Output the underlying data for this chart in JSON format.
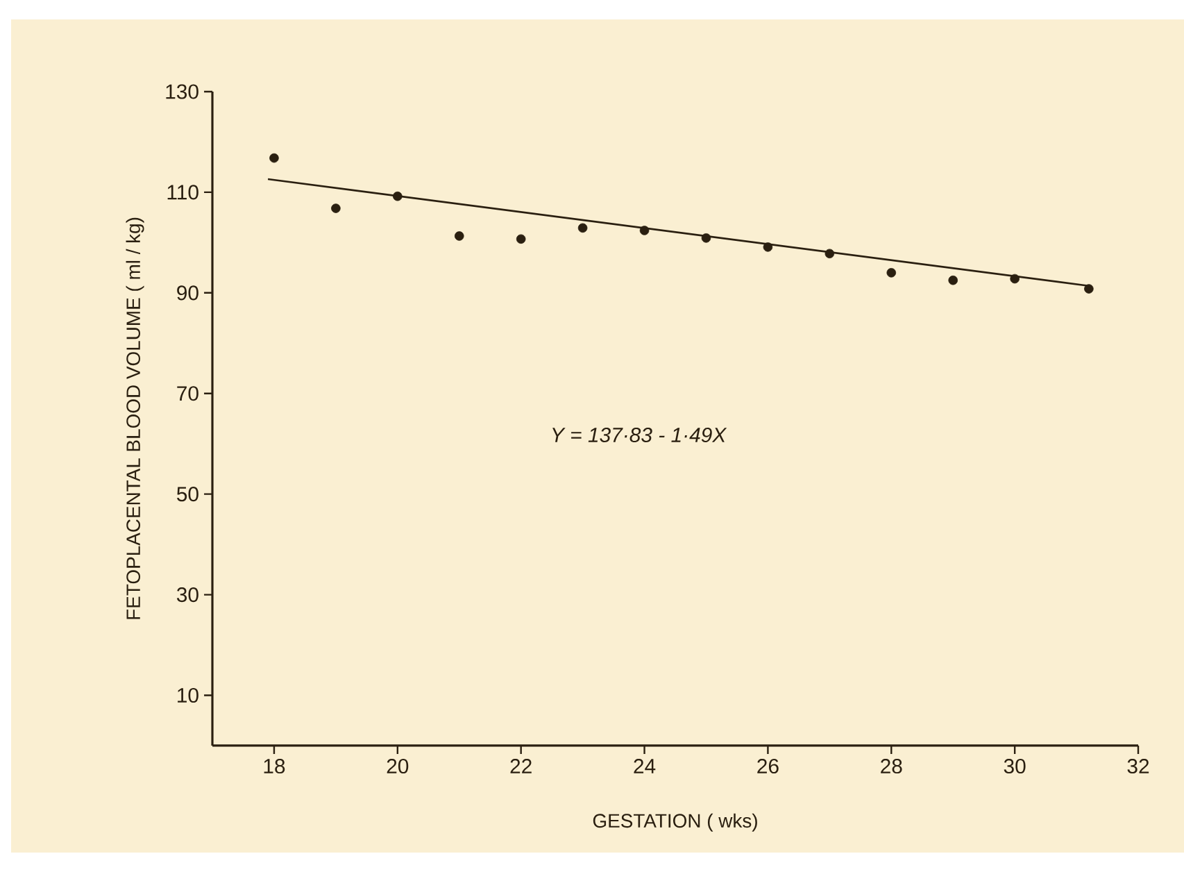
{
  "chart_data": {
    "type": "scatter",
    "xlabel": "GESTATION ( wks)",
    "ylabel": "FETOPLACENTAL  BLOOD  VOLUME  ( ml / kg)",
    "x": [
      18,
      19,
      20,
      21,
      22,
      23,
      24,
      25,
      26,
      27,
      28,
      29,
      30,
      31.2
    ],
    "series": [
      {
        "color": "#2a1f10",
        "marker": "circle",
        "values": [
          116.8,
          106.8,
          109.2,
          101.3,
          100.7,
          102.9,
          102.4,
          100.9,
          99.1,
          97.8,
          94.0,
          92.5,
          92.8,
          90.8
        ]
      },
      {
        "type": "line",
        "color": "#2a1f10",
        "x": [
          17.9,
          31.2
        ],
        "values": [
          112.6,
          91.4
        ]
      }
    ],
    "annotations": [
      "Y = 137·83 - 1·49X"
    ],
    "xlim": [
      17,
      32
    ],
    "ylim": [
      0,
      130
    ],
    "xticks": [
      18,
      20,
      22,
      24,
      26,
      28,
      30,
      32
    ],
    "yticks": [
      10,
      30,
      50,
      70,
      90,
      110,
      130
    ]
  }
}
